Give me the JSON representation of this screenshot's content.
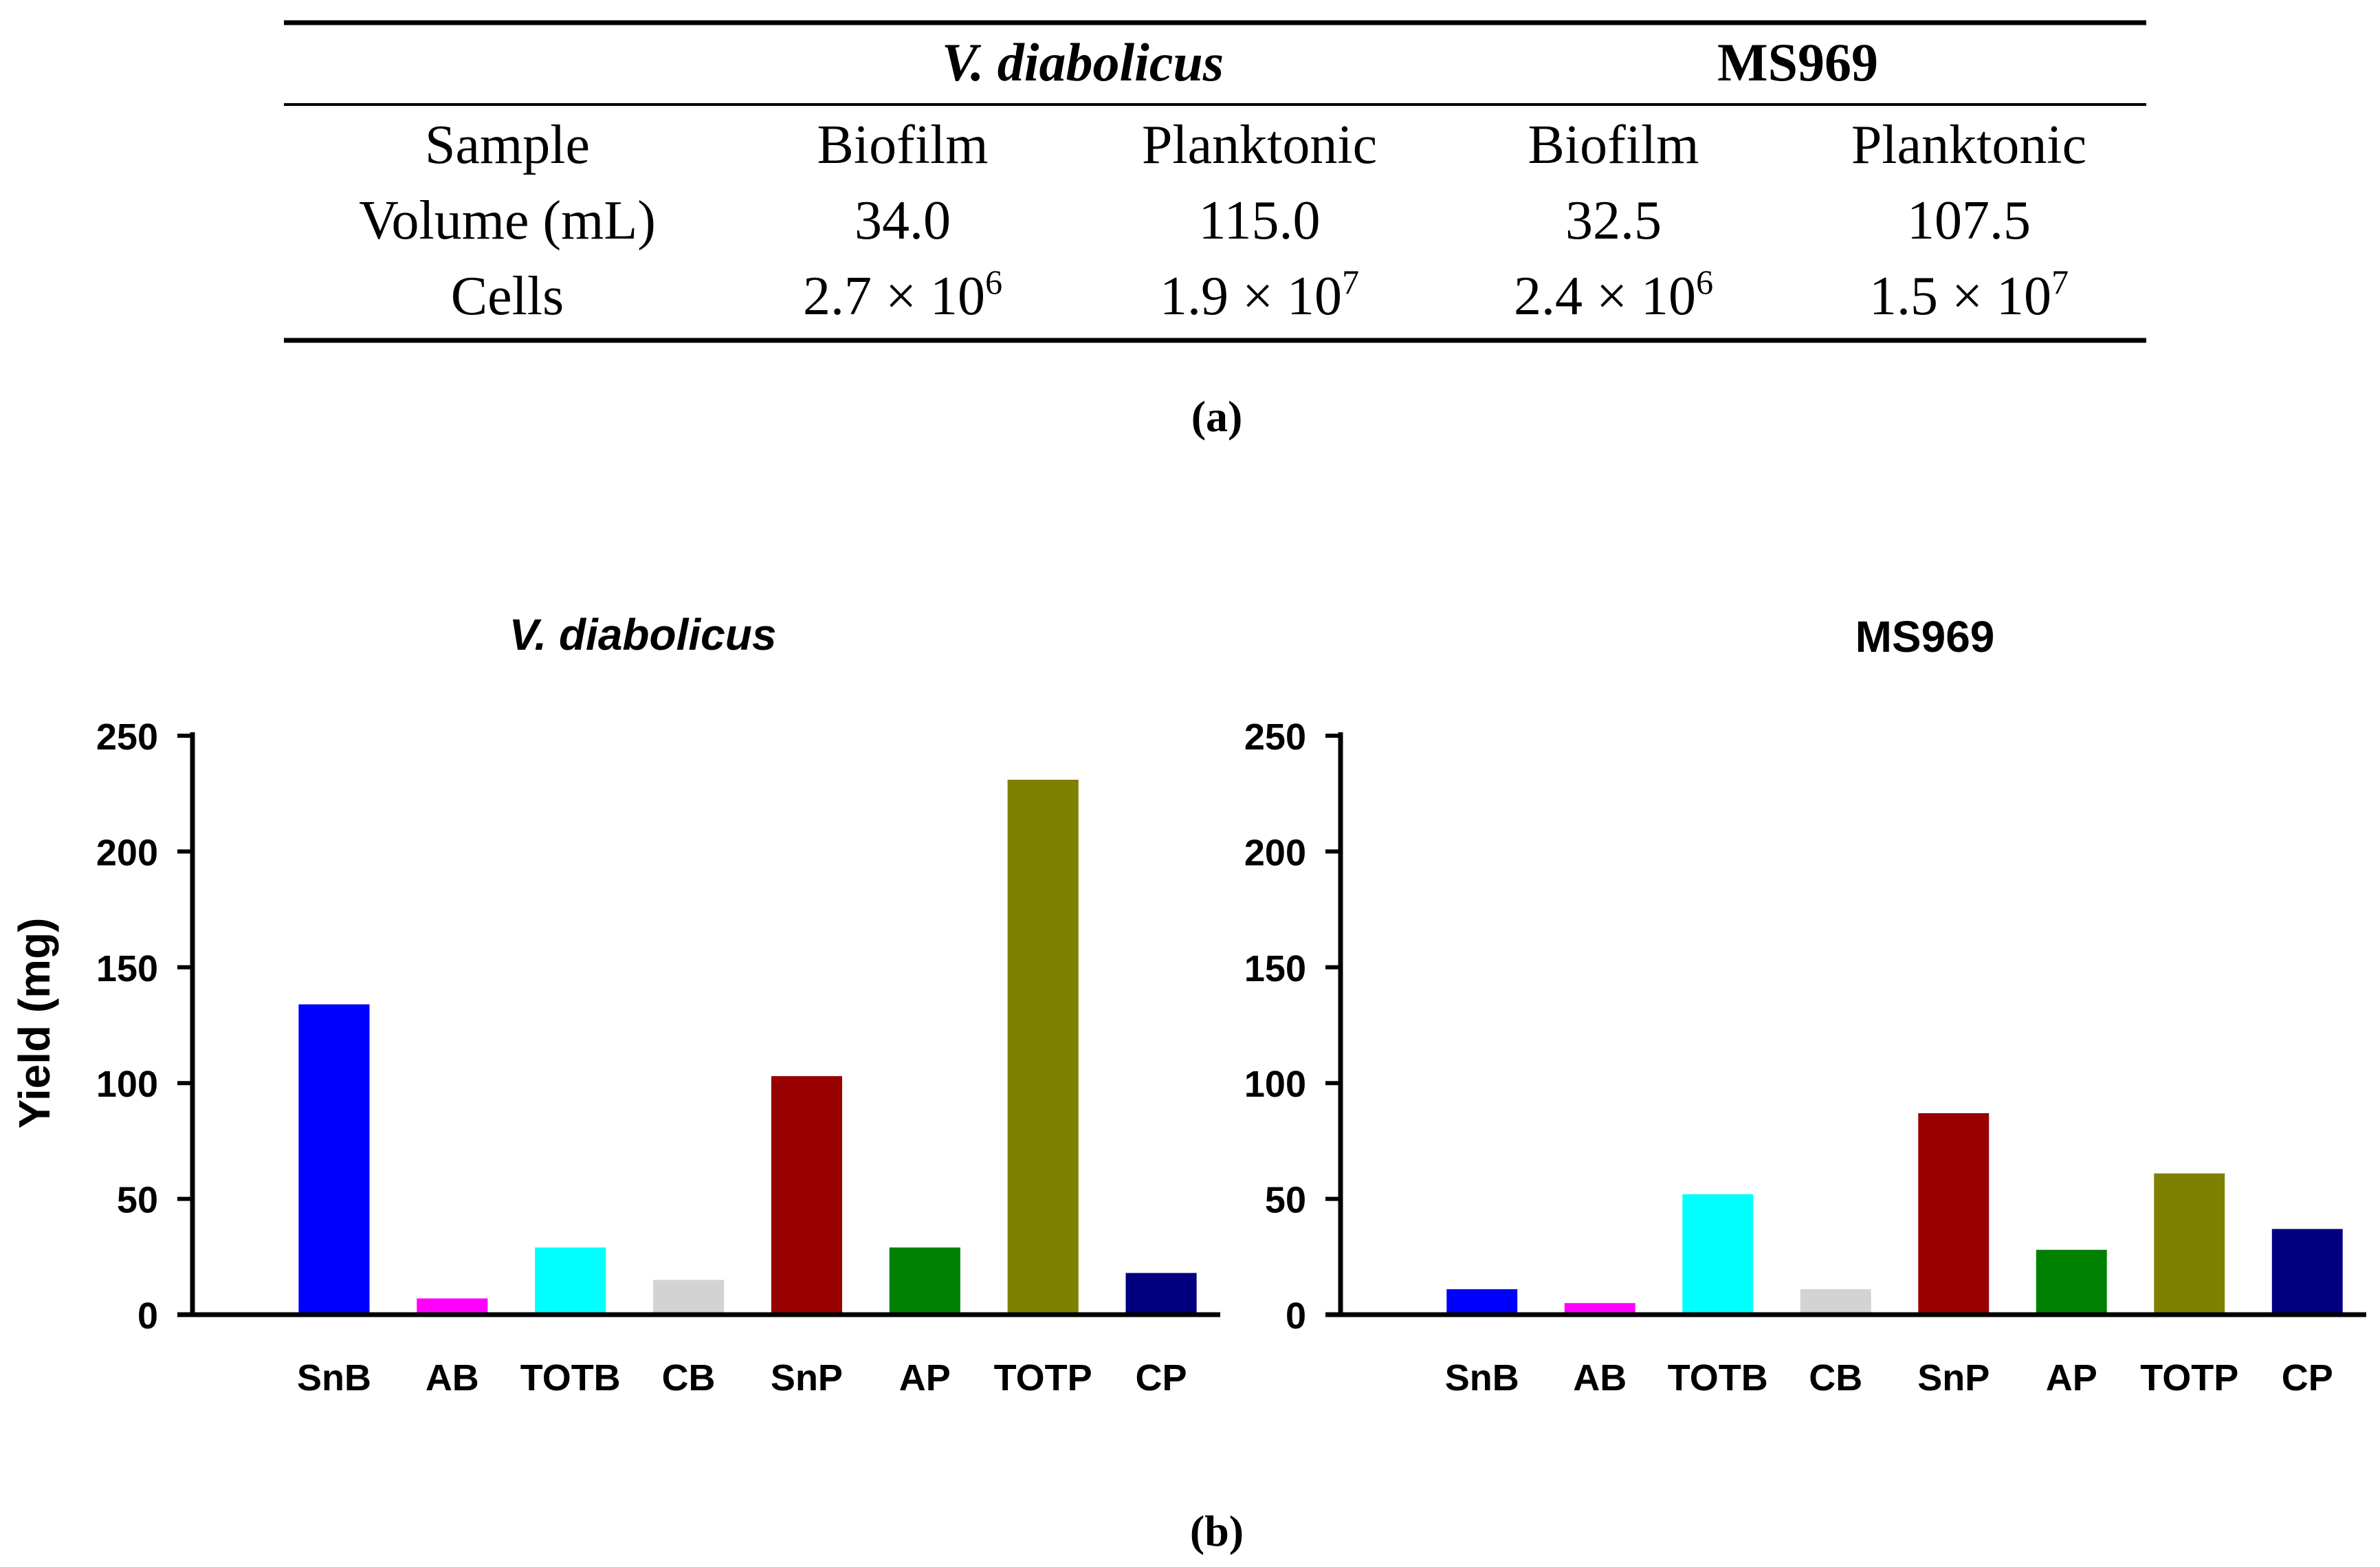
{
  "table": {
    "groups": [
      {
        "name": "V. diabolicus",
        "italic": true
      },
      {
        "name": "MS969",
        "italic": false
      }
    ],
    "rows": [
      {
        "label": "Sample",
        "cells": [
          "Biofilm",
          "Planktonic",
          "Biofilm",
          "Planktonic"
        ]
      },
      {
        "label": "Volume (mL)",
        "cells": [
          "34.0",
          "115.0",
          "32.5",
          "107.5"
        ]
      },
      {
        "label": "Cells",
        "cells": [
          {
            "base": "2.7 × 10",
            "exp": "6"
          },
          {
            "base": "1.9 × 10",
            "exp": "7"
          },
          {
            "base": "2.4 × 10",
            "exp": "6"
          },
          {
            "base": "1.5 × 10",
            "exp": "7"
          }
        ]
      }
    ],
    "caption": "(a)"
  },
  "figure_caption": "(b)",
  "y_axis_label": "Yield (mg)",
  "chart_data": [
    {
      "type": "bar",
      "title": "V. diabolicus",
      "title_italic": true,
      "ylabel": "Yield (mg)",
      "ylim": [
        0,
        250
      ],
      "yticks": [
        0,
        50,
        100,
        150,
        200,
        250
      ],
      "categories": [
        "SnB",
        "AB",
        "TOTB",
        "CB",
        "SnP",
        "AP",
        "TOTP",
        "CP"
      ],
      "values": [
        134,
        7,
        29,
        15,
        103,
        29,
        231,
        18
      ],
      "colors": [
        "#0000FF",
        "#FF00FF",
        "#00FFFF",
        "#D3D3D3",
        "#990000",
        "#008000",
        "#808000",
        "#000080"
      ]
    },
    {
      "type": "bar",
      "title": "MS969",
      "title_italic": false,
      "ylabel": "",
      "ylim": [
        0,
        250
      ],
      "yticks": [
        0,
        50,
        100,
        150,
        200,
        250
      ],
      "categories": [
        "SnB",
        "AB",
        "TOTB",
        "CB",
        "SnP",
        "AP",
        "TOTP",
        "CP"
      ],
      "values": [
        11,
        5,
        52,
        11,
        87,
        28,
        61,
        37
      ],
      "colors": [
        "#0000FF",
        "#FF00FF",
        "#00FFFF",
        "#D3D3D3",
        "#990000",
        "#008000",
        "#808000",
        "#000080"
      ]
    }
  ]
}
